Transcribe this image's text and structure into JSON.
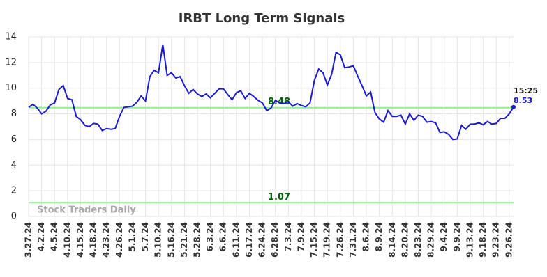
{
  "chart_data": {
    "type": "line",
    "title": "IRBT Long Term Signals",
    "categories": [
      "3.27.24",
      null,
      null,
      "4.2.24",
      null,
      null,
      "4.5.24",
      null,
      null,
      "4.10.24",
      null,
      null,
      "4.15.24",
      null,
      null,
      "4.18.24",
      null,
      null,
      "4.23.24",
      null,
      null,
      "4.26.24",
      null,
      null,
      "5.1.24",
      null,
      null,
      "5.7.24",
      null,
      null,
      "5.10.24",
      null,
      null,
      "5.16.24",
      null,
      null,
      "5.21.24",
      null,
      null,
      "5.28.24",
      null,
      null,
      "6.3.24",
      null,
      null,
      "6.6.24",
      null,
      null,
      "6.11.24",
      null,
      null,
      "6.17.24",
      null,
      null,
      "6.24.24",
      null,
      null,
      "6.28.24",
      null,
      null,
      "7.3.24",
      null,
      null,
      "7.9.24",
      null,
      null,
      "7.15.24",
      null,
      null,
      "7.19.24",
      null,
      null,
      "7.26.24",
      null,
      null,
      "7.31.24",
      null,
      null,
      "8.6.24",
      null,
      null,
      "8.9.24",
      null,
      null,
      "8.14.24",
      null,
      null,
      "8.20.24",
      null,
      null,
      "8.23.24",
      null,
      null,
      "8.29.24",
      null,
      null,
      "9.4.24",
      null,
      null,
      "9.9.24",
      null,
      null,
      "9.13.24",
      null,
      null,
      "9.18.24",
      null,
      null,
      "9.23.24",
      null,
      null,
      "9.26.24",
      null
    ],
    "values": [
      8.5,
      8.75,
      8.45,
      8.0,
      8.2,
      8.7,
      8.85,
      9.9,
      10.2,
      9.2,
      9.1,
      7.8,
      7.55,
      7.1,
      7.0,
      7.25,
      7.2,
      6.7,
      6.85,
      6.8,
      6.85,
      7.8,
      8.5,
      8.55,
      8.6,
      8.9,
      9.4,
      9.0,
      10.9,
      11.4,
      11.2,
      13.4,
      11.0,
      11.2,
      10.8,
      10.9,
      10.2,
      9.6,
      9.9,
      9.55,
      9.35,
      9.55,
      9.25,
      9.6,
      9.95,
      9.95,
      9.5,
      9.1,
      9.65,
      9.8,
      9.2,
      9.6,
      9.35,
      9.05,
      8.85,
      8.25,
      8.45,
      9.05,
      8.85,
      8.8,
      8.95,
      8.6,
      8.8,
      8.65,
      8.55,
      8.85,
      10.6,
      11.5,
      11.2,
      10.25,
      11.1,
      12.8,
      12.6,
      11.6,
      11.65,
      11.75,
      10.95,
      10.2,
      9.4,
      9.7,
      8.1,
      7.6,
      7.35,
      8.25,
      7.8,
      7.8,
      7.9,
      7.2,
      8.0,
      7.5,
      7.9,
      7.8,
      7.35,
      7.4,
      7.3,
      6.55,
      6.6,
      6.4,
      6.0,
      6.05,
      7.1,
      6.8,
      7.2,
      7.2,
      7.3,
      7.15,
      7.4,
      7.2,
      7.25,
      7.65,
      7.65,
      8.0,
      8.53
    ],
    "color": "#1a1adb",
    "reference_lines": [
      8.48,
      1.07
    ],
    "reference_color": "#90ee90",
    "reference_label_color": "#006400",
    "last_time": "15:25",
    "watermark": "Stock Traders Daily",
    "ylim": [
      0,
      14
    ],
    "yticks": [
      0,
      2,
      4,
      6,
      8,
      10,
      12,
      14
    ],
    "grid": true
  }
}
